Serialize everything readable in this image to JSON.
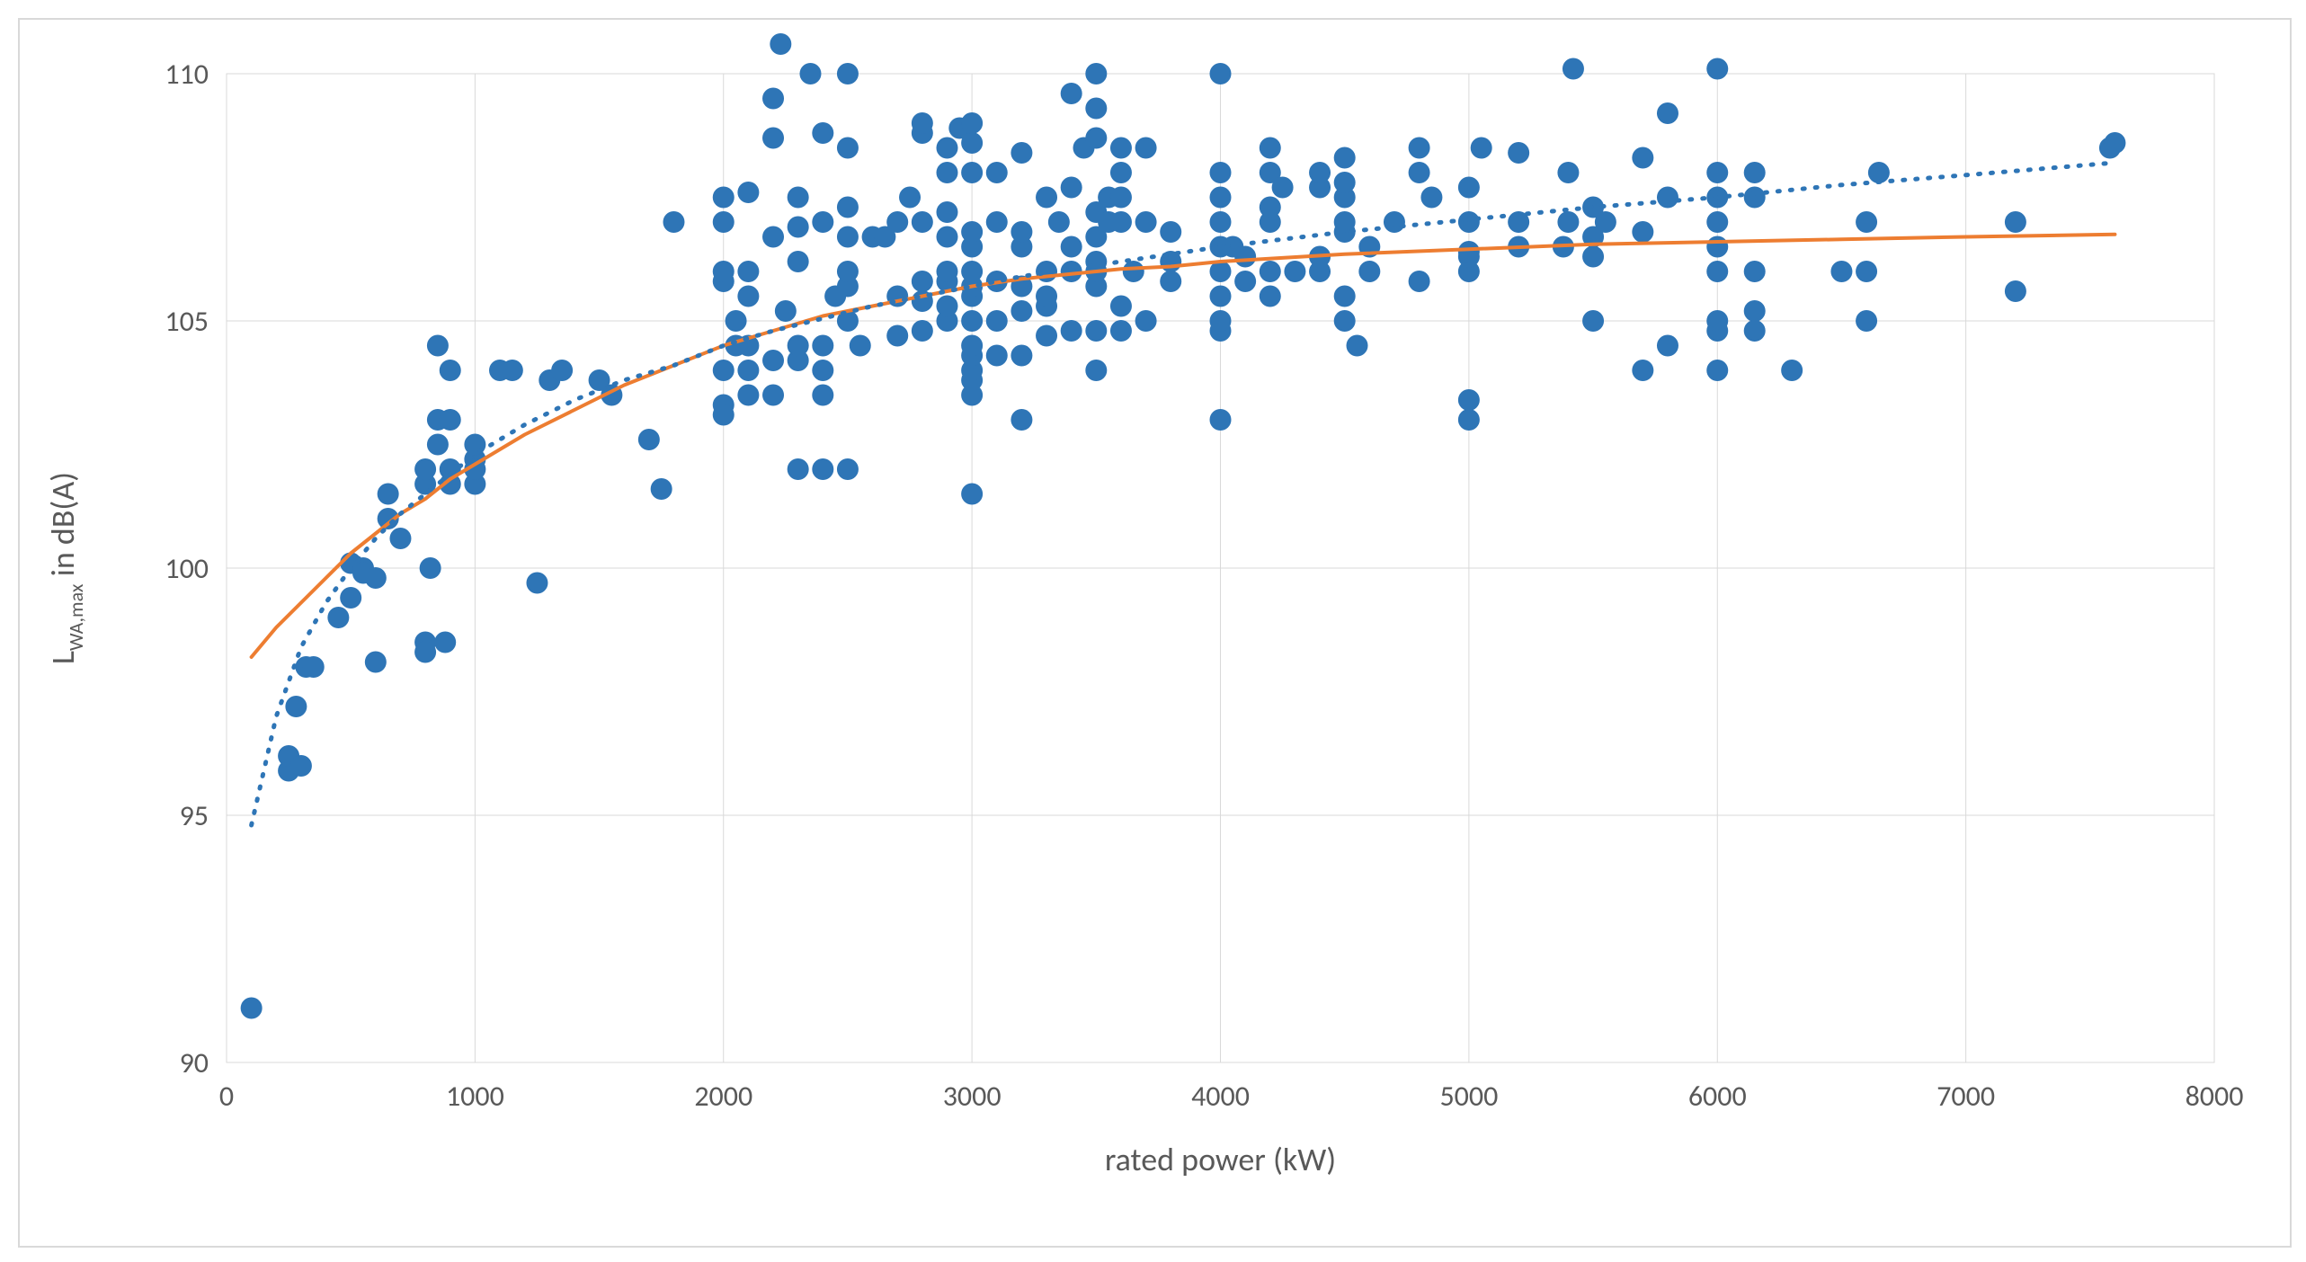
{
  "chart": {
    "type": "scatter",
    "background_color": "#ffffff",
    "frame_border_color": "#d9d9d9",
    "grid_color": "#d9d9d9",
    "grid_width": 1,
    "plot_border": true,
    "x_axis": {
      "title": "rated power (kW)",
      "title_fontsize": 36,
      "tick_fontsize": 32,
      "min": 0,
      "max": 8000,
      "tick_step": 1000,
      "color": "#595959"
    },
    "y_axis": {
      "title_plain": "L",
      "title_sub": "WA,max",
      "title_rest": " in dB(A)",
      "title_fontsize": 36,
      "tick_fontsize": 32,
      "min": 90,
      "max": 110,
      "tick_step": 5,
      "color": "#595959"
    },
    "scatter": {
      "marker_color": "#2e75b6",
      "marker_radius": 12,
      "points": [
        [
          100,
          91.1
        ],
        [
          250,
          95.9
        ],
        [
          250,
          96.2
        ],
        [
          280,
          97.2
        ],
        [
          300,
          96.0
        ],
        [
          320,
          98.0
        ],
        [
          350,
          98.0
        ],
        [
          450,
          99.0
        ],
        [
          500,
          99.4
        ],
        [
          500,
          100.1
        ],
        [
          550,
          100.0
        ],
        [
          550,
          99.9
        ],
        [
          600,
          98.1
        ],
        [
          600,
          99.8
        ],
        [
          650,
          101.0
        ],
        [
          650,
          101.5
        ],
        [
          700,
          100.6
        ],
        [
          800,
          101.7
        ],
        [
          800,
          102.0
        ],
        [
          800,
          98.5
        ],
        [
          800,
          98.3
        ],
        [
          820,
          100.0
        ],
        [
          850,
          102.5
        ],
        [
          850,
          103.0
        ],
        [
          850,
          104.5
        ],
        [
          880,
          98.5
        ],
        [
          900,
          102.0
        ],
        [
          900,
          101.7
        ],
        [
          900,
          103.0
        ],
        [
          900,
          104.0
        ],
        [
          1000,
          101.7
        ],
        [
          1000,
          102.2
        ],
        [
          1000,
          102.5
        ],
        [
          1000,
          102.0
        ],
        [
          1100,
          104.0
        ],
        [
          1150,
          104.0
        ],
        [
          1250,
          99.7
        ],
        [
          1300,
          103.8
        ],
        [
          1350,
          104.0
        ],
        [
          1500,
          103.8
        ],
        [
          1550,
          103.5
        ],
        [
          1700,
          102.6
        ],
        [
          1750,
          101.6
        ],
        [
          1800,
          107.0
        ],
        [
          2000,
          104.0
        ],
        [
          2000,
          103.3
        ],
        [
          2000,
          103.1
        ],
        [
          2000,
          105.8
        ],
        [
          2000,
          106.0
        ],
        [
          2000,
          107.0
        ],
        [
          2000,
          107.5
        ],
        [
          2050,
          104.5
        ],
        [
          2050,
          105.0
        ],
        [
          2100,
          103.5
        ],
        [
          2100,
          104.0
        ],
        [
          2100,
          104.5
        ],
        [
          2100,
          105.5
        ],
        [
          2100,
          106.0
        ],
        [
          2100,
          107.6
        ],
        [
          2200,
          103.5
        ],
        [
          2200,
          104.2
        ],
        [
          2200,
          106.7
        ],
        [
          2200,
          108.7
        ],
        [
          2200,
          109.5
        ],
        [
          2230,
          110.6
        ],
        [
          2250,
          105.2
        ],
        [
          2300,
          102.0
        ],
        [
          2300,
          104.2
        ],
        [
          2300,
          104.5
        ],
        [
          2300,
          106.2
        ],
        [
          2300,
          106.9
        ],
        [
          2300,
          107.5
        ],
        [
          2350,
          110.0
        ],
        [
          2400,
          102.0
        ],
        [
          2400,
          104.0
        ],
        [
          2400,
          104.5
        ],
        [
          2400,
          103.5
        ],
        [
          2400,
          107.0
        ],
        [
          2400,
          108.8
        ],
        [
          2450,
          105.5
        ],
        [
          2500,
          102.0
        ],
        [
          2500,
          105.0
        ],
        [
          2500,
          105.7
        ],
        [
          2500,
          106.0
        ],
        [
          2500,
          106.7
        ],
        [
          2500,
          107.3
        ],
        [
          2500,
          108.5
        ],
        [
          2500,
          110.0
        ],
        [
          2550,
          104.5
        ],
        [
          2600,
          106.7
        ],
        [
          2650,
          106.7
        ],
        [
          2700,
          104.7
        ],
        [
          2700,
          105.5
        ],
        [
          2700,
          107.0
        ],
        [
          2750,
          107.5
        ],
        [
          2800,
          104.8
        ],
        [
          2800,
          105.4
        ],
        [
          2800,
          105.8
        ],
        [
          2800,
          107.0
        ],
        [
          2800,
          108.8
        ],
        [
          2800,
          109.0
        ],
        [
          2900,
          105.0
        ],
        [
          2900,
          105.3
        ],
        [
          2900,
          105.8
        ],
        [
          2900,
          106.0
        ],
        [
          2900,
          106.7
        ],
        [
          2900,
          107.2
        ],
        [
          2900,
          108.0
        ],
        [
          2900,
          108.5
        ],
        [
          2950,
          108.9
        ],
        [
          3000,
          103.5
        ],
        [
          3000,
          103.8
        ],
        [
          3000,
          104.0
        ],
        [
          3000,
          104.3
        ],
        [
          3000,
          104.5
        ],
        [
          3000,
          105.0
        ],
        [
          3000,
          105.5
        ],
        [
          3000,
          105.7
        ],
        [
          3000,
          106.0
        ],
        [
          3000,
          106.5
        ],
        [
          3000,
          106.8
        ],
        [
          3000,
          108.0
        ],
        [
          3000,
          108.6
        ],
        [
          3000,
          109.0
        ],
        [
          3000,
          101.5
        ],
        [
          3100,
          104.3
        ],
        [
          3100,
          105.0
        ],
        [
          3100,
          105.8
        ],
        [
          3100,
          107.0
        ],
        [
          3100,
          108.0
        ],
        [
          3200,
          103.0
        ],
        [
          3200,
          104.3
        ],
        [
          3200,
          105.2
        ],
        [
          3200,
          105.7
        ],
        [
          3200,
          106.5
        ],
        [
          3200,
          106.8
        ],
        [
          3200,
          108.4
        ],
        [
          3300,
          104.7
        ],
        [
          3300,
          105.3
        ],
        [
          3300,
          105.5
        ],
        [
          3300,
          106.0
        ],
        [
          3300,
          107.5
        ],
        [
          3350,
          107.0
        ],
        [
          3400,
          104.8
        ],
        [
          3400,
          106.0
        ],
        [
          3400,
          106.5
        ],
        [
          3400,
          107.7
        ],
        [
          3400,
          109.6
        ],
        [
          3450,
          108.5
        ],
        [
          3500,
          104.0
        ],
        [
          3500,
          104.8
        ],
        [
          3500,
          105.7
        ],
        [
          3500,
          106.0
        ],
        [
          3500,
          106.2
        ],
        [
          3500,
          106.7
        ],
        [
          3500,
          107.2
        ],
        [
          3500,
          108.7
        ],
        [
          3500,
          109.3
        ],
        [
          3500,
          110.0
        ],
        [
          3550,
          107.0
        ],
        [
          3550,
          107.5
        ],
        [
          3600,
          104.8
        ],
        [
          3600,
          105.3
        ],
        [
          3600,
          107.0
        ],
        [
          3600,
          107.5
        ],
        [
          3600,
          108.0
        ],
        [
          3600,
          108.5
        ],
        [
          3650,
          106.0
        ],
        [
          3700,
          105.0
        ],
        [
          3700,
          107.0
        ],
        [
          3700,
          108.5
        ],
        [
          3800,
          105.8
        ],
        [
          3800,
          106.2
        ],
        [
          3800,
          106.8
        ],
        [
          4000,
          103.0
        ],
        [
          4000,
          104.8
        ],
        [
          4000,
          105.0
        ],
        [
          4000,
          105.5
        ],
        [
          4000,
          106.0
        ],
        [
          4000,
          106.5
        ],
        [
          4000,
          107.0
        ],
        [
          4000,
          107.5
        ],
        [
          4000,
          108.0
        ],
        [
          4000,
          110.0
        ],
        [
          4050,
          106.5
        ],
        [
          4100,
          105.8
        ],
        [
          4100,
          106.3
        ],
        [
          4200,
          105.5
        ],
        [
          4200,
          106.0
        ],
        [
          4200,
          107.0
        ],
        [
          4200,
          107.3
        ],
        [
          4200,
          108.0
        ],
        [
          4200,
          108.5
        ],
        [
          4250,
          107.7
        ],
        [
          4300,
          106.0
        ],
        [
          4400,
          106.0
        ],
        [
          4400,
          106.3
        ],
        [
          4400,
          107.7
        ],
        [
          4400,
          108.0
        ],
        [
          4500,
          105.0
        ],
        [
          4500,
          105.5
        ],
        [
          4500,
          106.8
        ],
        [
          4500,
          107.0
        ],
        [
          4500,
          107.5
        ],
        [
          4500,
          107.8
        ],
        [
          4500,
          108.3
        ],
        [
          4550,
          104.5
        ],
        [
          4600,
          106.0
        ],
        [
          4600,
          106.5
        ],
        [
          4700,
          107.0
        ],
        [
          4800,
          105.8
        ],
        [
          4800,
          108.0
        ],
        [
          4800,
          108.5
        ],
        [
          4850,
          107.5
        ],
        [
          5000,
          103.0
        ],
        [
          5000,
          103.4
        ],
        [
          5000,
          106.0
        ],
        [
          5000,
          106.3
        ],
        [
          5000,
          106.4
        ],
        [
          5000,
          107.0
        ],
        [
          5000,
          107.7
        ],
        [
          5050,
          108.5
        ],
        [
          5200,
          106.5
        ],
        [
          5200,
          107.0
        ],
        [
          5200,
          108.4
        ],
        [
          5380,
          106.5
        ],
        [
          5400,
          107.0
        ],
        [
          5400,
          108.0
        ],
        [
          5420,
          110.1
        ],
        [
          5500,
          105.0
        ],
        [
          5500,
          106.3
        ],
        [
          5500,
          106.7
        ],
        [
          5500,
          107.3
        ],
        [
          5550,
          107.0
        ],
        [
          5700,
          104.0
        ],
        [
          5700,
          106.8
        ],
        [
          5700,
          108.3
        ],
        [
          5800,
          104.5
        ],
        [
          5800,
          107.5
        ],
        [
          5800,
          109.2
        ],
        [
          6000,
          104.0
        ],
        [
          6000,
          104.8
        ],
        [
          6000,
          105.0
        ],
        [
          6000,
          106.0
        ],
        [
          6000,
          106.5
        ],
        [
          6000,
          107.0
        ],
        [
          6000,
          107.5
        ],
        [
          6000,
          108.0
        ],
        [
          6000,
          110.1
        ],
        [
          6150,
          104.8
        ],
        [
          6150,
          105.2
        ],
        [
          6150,
          106.0
        ],
        [
          6150,
          107.5
        ],
        [
          6150,
          108.0
        ],
        [
          6300,
          104.0
        ],
        [
          6500,
          106.0
        ],
        [
          6600,
          105.0
        ],
        [
          6600,
          106.0
        ],
        [
          6600,
          107.0
        ],
        [
          6650,
          108.0
        ],
        [
          7200,
          105.6
        ],
        [
          7200,
          107.0
        ],
        [
          7580,
          108.5
        ],
        [
          7600,
          108.6
        ]
      ]
    },
    "fit_solid": {
      "color": "#ed7d31",
      "width": 4,
      "dash": "none",
      "points": [
        [
          100,
          98.2
        ],
        [
          200,
          98.8
        ],
        [
          300,
          99.3
        ],
        [
          400,
          99.8
        ],
        [
          500,
          100.3
        ],
        [
          600,
          100.7
        ],
        [
          700,
          101.1
        ],
        [
          800,
          101.4
        ],
        [
          900,
          101.8
        ],
        [
          1000,
          102.1
        ],
        [
          1200,
          102.7
        ],
        [
          1400,
          103.2
        ],
        [
          1600,
          103.7
        ],
        [
          1800,
          104.1
        ],
        [
          2000,
          104.5
        ],
        [
          2200,
          104.8
        ],
        [
          2400,
          105.1
        ],
        [
          2600,
          105.3
        ],
        [
          2800,
          105.5
        ],
        [
          3000,
          105.7
        ],
        [
          3200,
          105.85
        ],
        [
          3400,
          105.95
        ],
        [
          3600,
          106.05
        ],
        [
          3800,
          106.1
        ],
        [
          4000,
          106.2
        ],
        [
          4500,
          106.35
        ],
        [
          5000,
          106.45
        ],
        [
          5500,
          106.55
        ],
        [
          6000,
          106.6
        ],
        [
          6500,
          106.65
        ],
        [
          7000,
          106.7
        ],
        [
          7600,
          106.75
        ]
      ]
    },
    "fit_dotted": {
      "color": "#2e75b6",
      "width": 5,
      "dash": "2,12",
      "points": [
        [
          100,
          94.8
        ],
        [
          200,
          97.0
        ],
        [
          300,
          98.4
        ],
        [
          400,
          99.3
        ],
        [
          500,
          100.0
        ],
        [
          600,
          100.6
        ],
        [
          700,
          101.1
        ],
        [
          800,
          101.5
        ],
        [
          900,
          101.9
        ],
        [
          1000,
          102.3
        ],
        [
          1200,
          102.9
        ],
        [
          1400,
          103.4
        ],
        [
          1600,
          103.8
        ],
        [
          1800,
          104.1
        ],
        [
          2000,
          104.5
        ],
        [
          2200,
          104.8
        ],
        [
          2400,
          105.05
        ],
        [
          2600,
          105.3
        ],
        [
          2800,
          105.5
        ],
        [
          3000,
          105.7
        ],
        [
          3200,
          105.9
        ],
        [
          3400,
          106.05
        ],
        [
          3600,
          106.2
        ],
        [
          3800,
          106.35
        ],
        [
          4000,
          106.5
        ],
        [
          4500,
          106.8
        ],
        [
          5000,
          107.05
        ],
        [
          5500,
          107.3
        ],
        [
          6000,
          107.5
        ],
        [
          6500,
          107.75
        ],
        [
          7000,
          107.95
        ],
        [
          7600,
          108.2
        ]
      ]
    }
  }
}
